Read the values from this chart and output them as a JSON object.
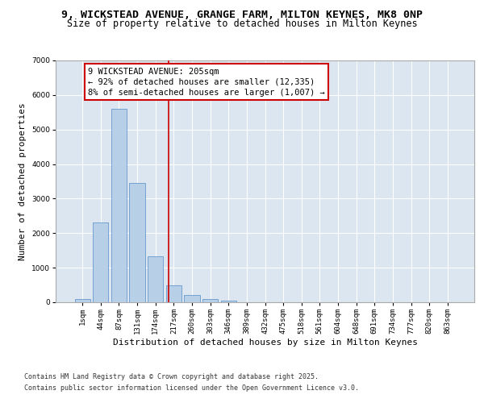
{
  "title_line1": "9, WICKSTEAD AVENUE, GRANGE FARM, MILTON KEYNES, MK8 0NP",
  "title_line2": "Size of property relative to detached houses in Milton Keynes",
  "xlabel": "Distribution of detached houses by size in Milton Keynes",
  "ylabel": "Number of detached properties",
  "bar_labels": [
    "1sqm",
    "44sqm",
    "87sqm",
    "131sqm",
    "174sqm",
    "217sqm",
    "260sqm",
    "303sqm",
    "346sqm",
    "389sqm",
    "432sqm",
    "475sqm",
    "518sqm",
    "561sqm",
    "604sqm",
    "648sqm",
    "691sqm",
    "734sqm",
    "777sqm",
    "820sqm",
    "863sqm"
  ],
  "bar_values": [
    100,
    2300,
    5600,
    3450,
    1320,
    500,
    200,
    100,
    50,
    0,
    0,
    0,
    0,
    0,
    0,
    0,
    0,
    0,
    0,
    0,
    0
  ],
  "bar_color": "#b8cfe8",
  "bar_edgecolor": "#6699cc",
  "background_color": "#dce6f0",
  "grid_color": "#ffffff",
  "vline_x": 4.72,
  "vline_color": "#cc0000",
  "annotation_text": "9 WICKSTEAD AVENUE: 205sqm\n← 92% of detached houses are smaller (12,335)\n8% of semi-detached houses are larger (1,007) →",
  "annotation_box_color": "#ffffff",
  "annotation_box_edgecolor": "#cc0000",
  "ylim": [
    0,
    7000
  ],
  "yticks": [
    0,
    1000,
    2000,
    3000,
    4000,
    5000,
    6000,
    7000
  ],
  "footer_line1": "Contains HM Land Registry data © Crown copyright and database right 2025.",
  "footer_line2": "Contains public sector information licensed under the Open Government Licence v3.0.",
  "fig_bg": "#ffffff",
  "title_fontsize": 9.5,
  "subtitle_fontsize": 8.5,
  "axis_label_fontsize": 8,
  "tick_fontsize": 6.5,
  "annotation_fontsize": 7.5,
  "footer_fontsize": 6
}
